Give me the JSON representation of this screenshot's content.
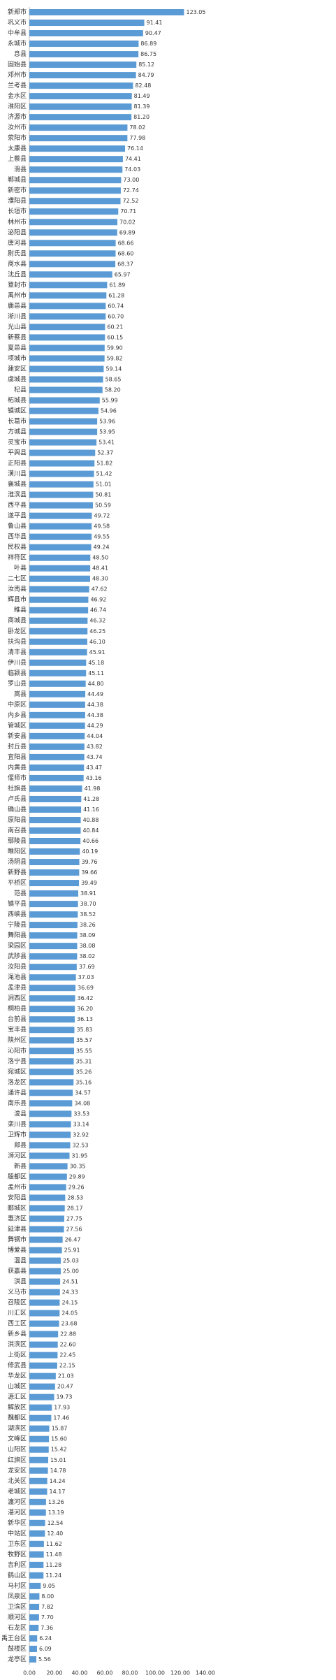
{
  "chart_data": {
    "type": "barh",
    "color": "#5b9bd5",
    "grid": false,
    "categories": [
      "新郑市",
      "巩义市",
      "中牟县",
      "永城市",
      "息县",
      "固始县",
      "邓州市",
      "兰考县",
      "金水区",
      "淮阳区",
      "济源市",
      "汝州市",
      "荥阳市",
      "太康县",
      "上蔡县",
      "滑县",
      "郸城县",
      "新密市",
      "濮阳县",
      "长垣市",
      "林州市",
      "泌阳县",
      "唐河县",
      "尉氏县",
      "商水县",
      "沈丘县",
      "登封市",
      "禹州市",
      "鹿邑县",
      "淅川县",
      "光山县",
      "新蔡县",
      "夏邑县",
      "项城市",
      "建安区",
      "虞城县",
      "杞县",
      "柘城县",
      "镇城区",
      "长葛市",
      "方城县",
      "灵宝市",
      "平舆县",
      "正阳县",
      "潢川县",
      "襄城县",
      "淮滨县",
      "西平县",
      "遂平县",
      "鲁山县",
      "西华县",
      "民权县",
      "祥符区",
      "叶县",
      "二七区",
      "汝南县",
      "辉县市",
      "睢县",
      "商城县",
      "卧龙区",
      "扶沟县",
      "清丰县",
      "伊川县",
      "临颍县",
      "罗山县",
      "嵩县",
      "中原区",
      "内乡县",
      "管城区",
      "新安县",
      "封丘县",
      "宜阳县",
      "内黄县",
      "偃师市",
      "社旗县",
      "卢氏县",
      "确山县",
      "原阳县",
      "南召县",
      "鄢陵县",
      "睢阳区",
      "汤阴县",
      "新野县",
      "平桥区",
      "范县",
      "镇平县",
      "西峡县",
      "宁陵县",
      "舞阳县",
      "梁园区",
      "武陟县",
      "汝阳县",
      "渑池县",
      "孟津县",
      "涧西区",
      "桐柏县",
      "台前县",
      "宝丰县",
      "陕州区",
      "沁阳市",
      "洛宁县",
      "宛城区",
      "洛龙区",
      "通许县",
      "南乐县",
      "浚县",
      "栾川县",
      "卫辉市",
      "郏县",
      "浉河区",
      "新县",
      "殷都区",
      "孟州市",
      "安阳县",
      "郾城区",
      "惠济区",
      "延津县",
      "舞钢市",
      "博爱县",
      "温县",
      "获嘉县",
      "淇县",
      "义马市",
      "召陵区",
      "川汇区",
      "西工区",
      "新乡县",
      "淇滨区",
      "上街区",
      "修武县",
      "华龙区",
      "山城区",
      "源汇区",
      "解放区",
      "魏都区",
      "湖滨区",
      "文峰区",
      "山阳区",
      "红旗区",
      "龙安区",
      "北关区",
      "老城区",
      "瀍河区",
      "湛河区",
      "新华区",
      "中站区",
      "卫东区",
      "牧野区",
      "吉利区",
      "鹤山区",
      "马村区",
      "凤泉区",
      "卫滨区",
      "顺河区",
      "石龙区",
      "禹王台区",
      "鼓楼区",
      "龙亭区"
    ],
    "values": [
      123.05,
      91.41,
      90.47,
      86.89,
      86.75,
      85.12,
      84.79,
      82.48,
      81.49,
      81.39,
      81.2,
      78.02,
      77.98,
      76.14,
      74.41,
      74.03,
      73,
      72.74,
      72.52,
      70.71,
      70.02,
      69.89,
      68.66,
      68.6,
      68.37,
      65.97,
      61.89,
      61.28,
      60.74,
      60.7,
      60.21,
      60.15,
      59.9,
      59.82,
      59.14,
      58.65,
      58.2,
      55.99,
      54.96,
      53.96,
      53.95,
      53.41,
      52.37,
      51.82,
      51.42,
      51.01,
      50.81,
      50.59,
      49.72,
      49.58,
      49.55,
      49.24,
      48.5,
      48.41,
      48.3,
      47.62,
      46.92,
      46.74,
      46.32,
      46.25,
      46.1,
      45.91,
      45.18,
      45.11,
      44.8,
      44.49,
      44.38,
      44.38,
      44.29,
      44.04,
      43.82,
      43.74,
      43.47,
      43.16,
      41.98,
      41.28,
      41.16,
      40.88,
      40.84,
      40.66,
      40.19,
      39.76,
      39.66,
      39.49,
      38.91,
      38.7,
      38.52,
      38.26,
      38.09,
      38.08,
      38.02,
      37.69,
      37.03,
      36.69,
      36.42,
      36.2,
      36.13,
      35.83,
      35.57,
      35.55,
      35.31,
      35.26,
      35.16,
      34.57,
      34.08,
      33.53,
      33.14,
      32.92,
      32.53,
      31.95,
      30.35,
      29.89,
      29.26,
      28.53,
      28.17,
      27.75,
      27.56,
      26.47,
      25.91,
      25.03,
      25,
      24.51,
      24.33,
      24.15,
      24.05,
      23.68,
      22.88,
      22.6,
      22.45,
      22.15,
      21.03,
      20.47,
      19.73,
      17.93,
      17.46,
      15.87,
      15.6,
      15.42,
      15.01,
      14.78,
      14.24,
      14.17,
      13.26,
      13.19,
      12.54,
      12.4,
      11.62,
      11.48,
      11.28,
      11.24,
      9.05,
      8,
      7.82,
      7.7,
      7.36,
      6.24,
      6.09,
      5.56
    ],
    "value_labels": [
      "123.05",
      "91.41",
      "90.47",
      "86.89",
      "86.75",
      "85.12",
      "84.79",
      "82.48",
      "81.49",
      "81.39",
      "81.20",
      "78.02",
      "77.98",
      "76.14",
      "74.41",
      "74.03",
      "73.00",
      "72.74",
      "72.52",
      "70.71",
      "70.02",
      "69.89",
      "68.66",
      "68.60",
      "68.37",
      "65.97",
      "61.89",
      "61.28",
      "60.74",
      "60.70",
      "60.21",
      "60.15",
      "59.90",
      "59.82",
      "59.14",
      "58.65",
      "58.20",
      "55.99",
      "54.96",
      "53.96",
      "53.95",
      "53.41",
      "52.37",
      "51.82",
      "51.42",
      "51.01",
      "50.81",
      "50.59",
      "49.72",
      "49.58",
      "49.55",
      "49.24",
      "48.50",
      "48.41",
      "48.30",
      "47.62",
      "46.92",
      "46.74",
      "46.32",
      "46.25",
      "46.10",
      "45.91",
      "45.18",
      "45.11",
      "44.80",
      "44.49",
      "44.38",
      "44.38",
      "44.29",
      "44.04",
      "43.82",
      "43.74",
      "43.47",
      "43.16",
      "41.98",
      "41.28",
      "41.16",
      "40.88",
      "40.84",
      "40.66",
      "40.19",
      "39.76",
      "39.66",
      "39.49",
      "38.91",
      "38.70",
      "38.52",
      "38.26",
      "38.09",
      "38.08",
      "38.02",
      "37.69",
      "37.03",
      "36.69",
      "36.42",
      "36.20",
      "36.13",
      "35.83",
      "35.57",
      "35.55",
      "35.31",
      "35.26",
      "35.16",
      "34.57",
      "34.08",
      "33.53",
      "33.14",
      "32.92",
      "32.53",
      "31.95",
      "30.35",
      "29.89",
      "29.26",
      "28.53",
      "28.17",
      "27.75",
      "27.56",
      "26.47",
      "25.91",
      "25.03",
      "25.00",
      "24.51",
      "24.33",
      "24.15",
      "24.05",
      "23.68",
      "22.88",
      "22.60",
      "22.45",
      "22.15",
      "21.03",
      "20.47",
      "19.73",
      "17.93",
      "17.46",
      "15.87",
      "15.60",
      "15.42",
      "15.01",
      "14.78",
      "14.24",
      "14.17",
      "13.26",
      "13.19",
      "12.54",
      "12.40",
      "11.62",
      "11.48",
      "11.28",
      "11.24",
      "9.05",
      "8.00",
      "7.82",
      "7.70",
      "7.36",
      "6.24",
      "6.09",
      "5.56"
    ],
    "xlim": [
      0,
      140
    ],
    "xticks": [
      {
        "value": 0,
        "label": "0.00"
      },
      {
        "value": 20,
        "label": "20.00"
      },
      {
        "value": 40,
        "label": "40.00"
      },
      {
        "value": 60,
        "label": "60.00"
      },
      {
        "value": 80,
        "label": "80.00"
      },
      {
        "value": 100,
        "label": "100.00"
      },
      {
        "value": 120,
        "label": "120.00"
      },
      {
        "value": 140,
        "label": "140.00"
      }
    ]
  }
}
